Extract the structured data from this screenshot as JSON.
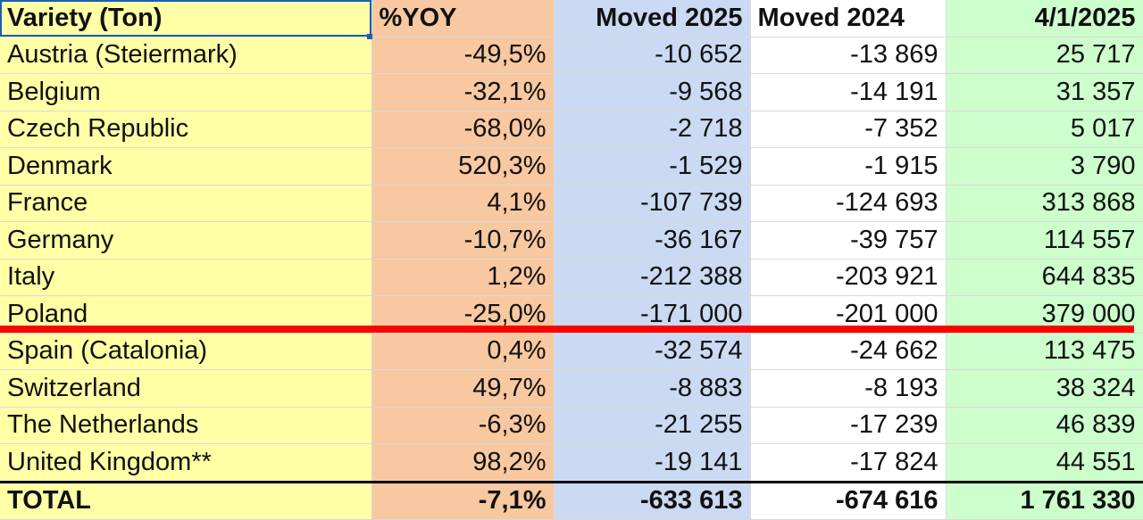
{
  "table": {
    "headers": {
      "variety": "Variety (Ton)",
      "yoy": "%YOY",
      "moved_2025": "Moved 2025",
      "moved_2024": "Moved 2024",
      "date": "4/1/2025"
    },
    "rows": [
      {
        "variety": "Austria (Steiermark)",
        "yoy": "-49,5%",
        "moved_2025": "-10 652",
        "moved_2024": "-13 869",
        "date": "25 717"
      },
      {
        "variety": "Belgium",
        "yoy": "-32,1%",
        "moved_2025": "-9 568",
        "moved_2024": "-14 191",
        "date": "31 357"
      },
      {
        "variety": "Czech Republic",
        "yoy": "-68,0%",
        "moved_2025": "-2 718",
        "moved_2024": "-7 352",
        "date": "5 017"
      },
      {
        "variety": "Denmark",
        "yoy": "520,3%",
        "moved_2025": "-1 529",
        "moved_2024": "-1 915",
        "date": "3 790"
      },
      {
        "variety": "France",
        "yoy": "4,1%",
        "moved_2025": "-107 739",
        "moved_2024": "-124 693",
        "date": "313 868"
      },
      {
        "variety": "Germany",
        "yoy": "-10,7%",
        "moved_2025": "-36 167",
        "moved_2024": "-39 757",
        "date": "114 557"
      },
      {
        "variety": "Italy",
        "yoy": "1,2%",
        "moved_2025": "-212 388",
        "moved_2024": "-203 921",
        "date": "644 835"
      },
      {
        "variety": "Poland",
        "yoy": "-25,0%",
        "moved_2025": "-171 000",
        "moved_2024": "-201 000",
        "date": "379 000"
      },
      {
        "variety": "Spain (Catalonia)",
        "yoy": "0,4%",
        "moved_2025": "-32 574",
        "moved_2024": "-24 662",
        "date": "113 475"
      },
      {
        "variety": "Switzerland",
        "yoy": "49,7%",
        "moved_2025": "-8 883",
        "moved_2024": "-8 193",
        "date": "38 324"
      },
      {
        "variety": "The Netherlands",
        "yoy": "-6,3%",
        "moved_2025": "-21 255",
        "moved_2024": "-17 239",
        "date": "46 839"
      },
      {
        "variety": "United Kingdom**",
        "yoy": "98,2%",
        "moved_2025": "-19 141",
        "moved_2024": "-17 824",
        "date": "44 551"
      }
    ],
    "total": {
      "variety": "TOTAL",
      "yoy": "-7,1%",
      "moved_2025": "-633 613",
      "moved_2024": "-674 616",
      "date": "1 761 330"
    }
  },
  "colors": {
    "variety_col": "#ffffa6",
    "yoy_col": "#f8c8a0",
    "moved_2025_col": "#c9daf2",
    "moved_2024_col": "#ffffff",
    "date_col": "#ccffcc",
    "highlight_line": "#ff0000",
    "selection": "#1a5fb4"
  }
}
